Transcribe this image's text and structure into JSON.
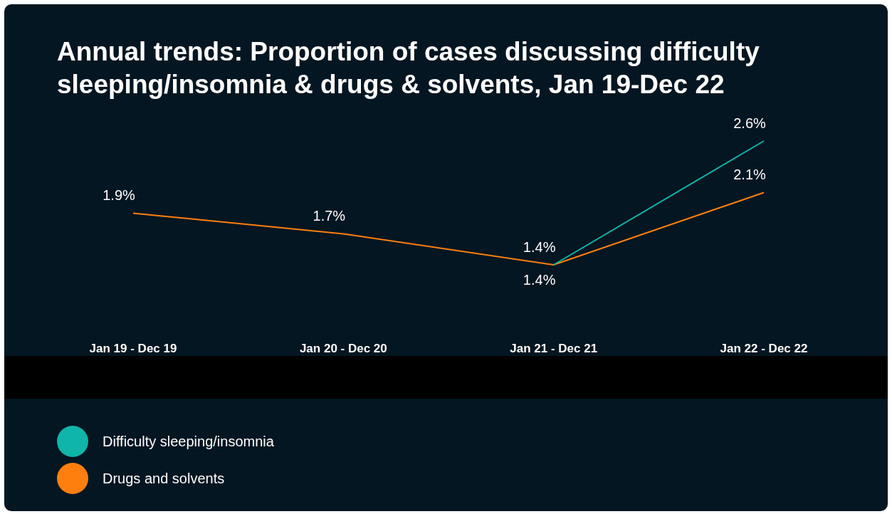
{
  "chart_data": {
    "type": "line",
    "title": "Annual trends: Proportion of cases discussing difficulty sleeping/insomnia & drugs & solvents, Jan 19-Dec 22",
    "categories": [
      "Jan 19 - Dec 19",
      "Jan 20 - Dec 20",
      "Jan 21 - Dec 21",
      "Jan 22 - Dec 22"
    ],
    "series": [
      {
        "name": "Difficulty sleeping/insomnia",
        "color": "#0fb5a8",
        "values": [
          null,
          null,
          1.4,
          2.6
        ],
        "value_labels": [
          null,
          null,
          "1.4%",
          "2.6%"
        ]
      },
      {
        "name": "Drugs and solvents",
        "color": "#ff7f0e",
        "values": [
          1.9,
          1.7,
          1.4,
          2.1
        ],
        "value_labels": [
          "1.9%",
          "1.7%",
          "1.4%",
          "2.1%"
        ]
      }
    ],
    "legend": "bottom left",
    "marker": "none",
    "line_style": "solid"
  }
}
